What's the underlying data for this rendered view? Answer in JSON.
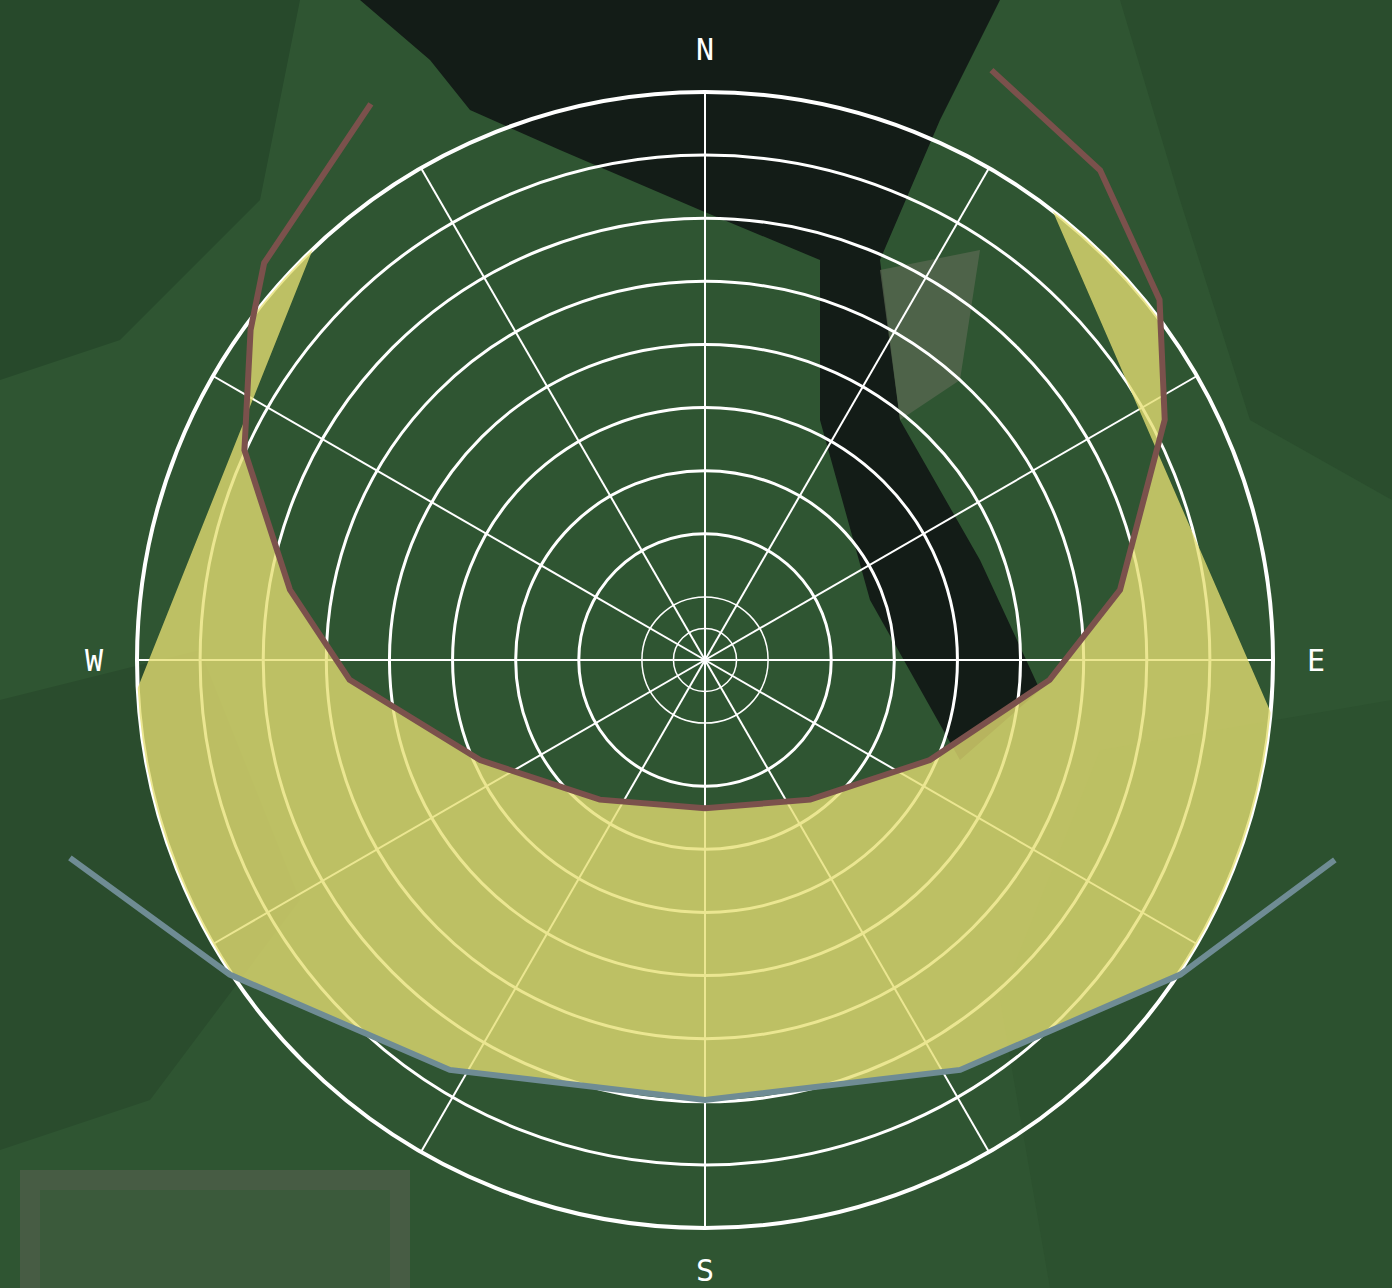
{
  "chart_data": {
    "type": "sun_path",
    "tick_labels": false,
    "grid": true,
    "labels": [
      {
        "text": "N",
        "azimuth": 0
      },
      {
        "text": "E",
        "azimuth": 90
      },
      {
        "text": "S",
        "azimuth": 180
      },
      {
        "text": "W",
        "azimuth": 270
      }
    ],
    "altitude_rings": [
      0,
      10,
      20,
      30,
      40,
      50,
      60,
      70,
      80,
      85
    ],
    "azimuth_lines": [
      0,
      30,
      60,
      90,
      120,
      150,
      180,
      210,
      240,
      270,
      300,
      330
    ],
    "series": [
      {
        "color": "#7b514c",
        "azimuth": [
          329,
          312,
          306,
          294.5,
          279.6,
          266.8,
          246,
          217,
          180,
          143,
          114,
          93.3,
          80.4,
          62.4,
          51.6,
          38.9,
          25.9
        ],
        "altitude": [
          -12.8,
          -4,
          1,
          9.8,
          23.3,
          33.6,
          51,
          62.3,
          66.5,
          62.3,
          51,
          35.3,
          23.3,
          7.8,
          -1.9,
          -9.7,
          -13.9
        ]
      },
      {
        "color": "#6f8c94",
        "azimuth": [
          252.7,
          236.5,
          211.9,
          180,
          148.1,
          123.5,
          107.6
        ],
        "altitude": [
          -15.4,
          -0.3,
          13.5,
          20.3,
          13.5,
          -0.3,
          -14.7
        ]
      }
    ]
  }
}
